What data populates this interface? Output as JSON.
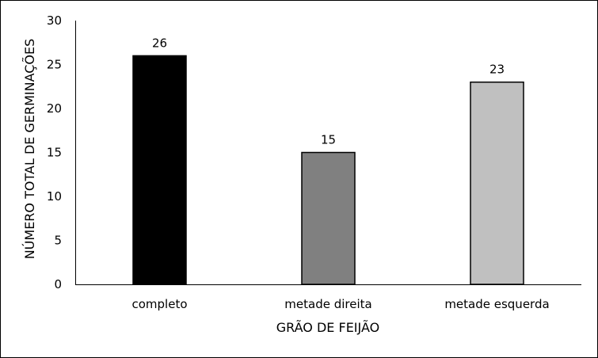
{
  "chart_data": {
    "type": "bar",
    "title": "",
    "xlabel": "GRÃO DE FEIJÃO",
    "ylabel": "NÚMERO TOTAL DE GERMINAÇÕES",
    "categories": [
      "completo",
      "metade direita",
      "metade esquerda"
    ],
    "values": [
      26,
      15,
      23
    ],
    "data_labels": [
      "26",
      "15",
      "23"
    ],
    "bar_colors": [
      "#000000",
      "#808080",
      "#c0c0c0"
    ],
    "ylim": [
      0,
      30
    ],
    "yticks": [
      "0",
      "5",
      "10",
      "15",
      "20",
      "25",
      "30"
    ],
    "grid": false,
    "legend": "none"
  }
}
